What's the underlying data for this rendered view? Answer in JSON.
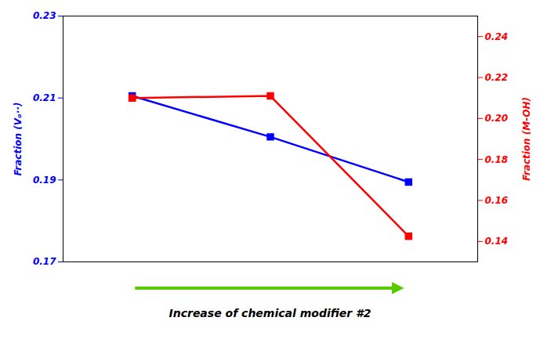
{
  "chart_data": {
    "type": "line",
    "x": [
      1,
      2,
      3
    ],
    "xlim": [
      0.5,
      3.5
    ],
    "xticks": [],
    "tick_labels": "y",
    "grid": false,
    "ylabel": "Fraction (Vₒ··)",
    "y2label": "Fraction (M-OH)",
    "ylim": [
      0.17,
      0.23
    ],
    "yticks": [
      0.17,
      0.19,
      0.21,
      0.23
    ],
    "y2lim": [
      0.13,
      0.25
    ],
    "y2ticks": [
      0.14,
      0.16,
      0.18,
      {
        "value": 0.2,
        "label": "0.20"
      },
      0.22,
      0.24
    ],
    "series": [
      {
        "color": "#0000FF",
        "marker": "square",
        "values": [
          0.2105,
          0.2005,
          0.1895
        ]
      },
      {
        "color": "#FF0000",
        "marker": "square",
        "axis": "y2",
        "values": [
          0.21,
          0.211,
          0.1425
        ]
      }
    ],
    "annotations": [
      {
        "type": "arrow",
        "color": "#55CC00",
        "text": "Increase of chemical modifier #2"
      }
    ]
  }
}
